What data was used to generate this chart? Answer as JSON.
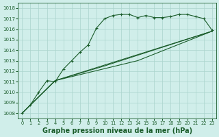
{
  "background_color": "#d0eeea",
  "grid_color": "#aad4cc",
  "line_color": "#1a5c2a",
  "xlabel": "Graphe pression niveau de la mer (hPa)",
  "xlabel_fontsize": 7,
  "ylim": [
    1007.5,
    1018.5
  ],
  "xlim": [
    -0.5,
    23.5
  ],
  "yticks": [
    1008,
    1009,
    1010,
    1011,
    1012,
    1013,
    1014,
    1015,
    1016,
    1017,
    1018
  ],
  "xticks": [
    0,
    1,
    2,
    3,
    4,
    5,
    6,
    7,
    8,
    9,
    10,
    11,
    12,
    13,
    14,
    15,
    16,
    17,
    18,
    19,
    20,
    21,
    22,
    23
  ],
  "line1_y": [
    1008.0,
    1008.8,
    1010.0,
    1011.1,
    1011.0,
    1012.2,
    1013.0,
    1013.8,
    1014.5,
    1016.1,
    1017.0,
    1017.3,
    1017.4,
    1017.4,
    1017.1,
    1017.3,
    1017.1,
    1017.1,
    1017.2,
    1017.4,
    1017.4,
    1017.2,
    1017.0,
    1015.9
  ],
  "line2_x": [
    0,
    4,
    23
  ],
  "line2_y": [
    1008.0,
    1011.1,
    1015.8
  ],
  "line3_x": [
    0,
    4,
    14,
    23
  ],
  "line3_y": [
    1008.0,
    1011.1,
    1013.0,
    1015.8
  ],
  "line4_x": [
    0,
    4,
    10,
    23
  ],
  "line4_y": [
    1008.0,
    1011.1,
    1012.5,
    1015.8
  ]
}
